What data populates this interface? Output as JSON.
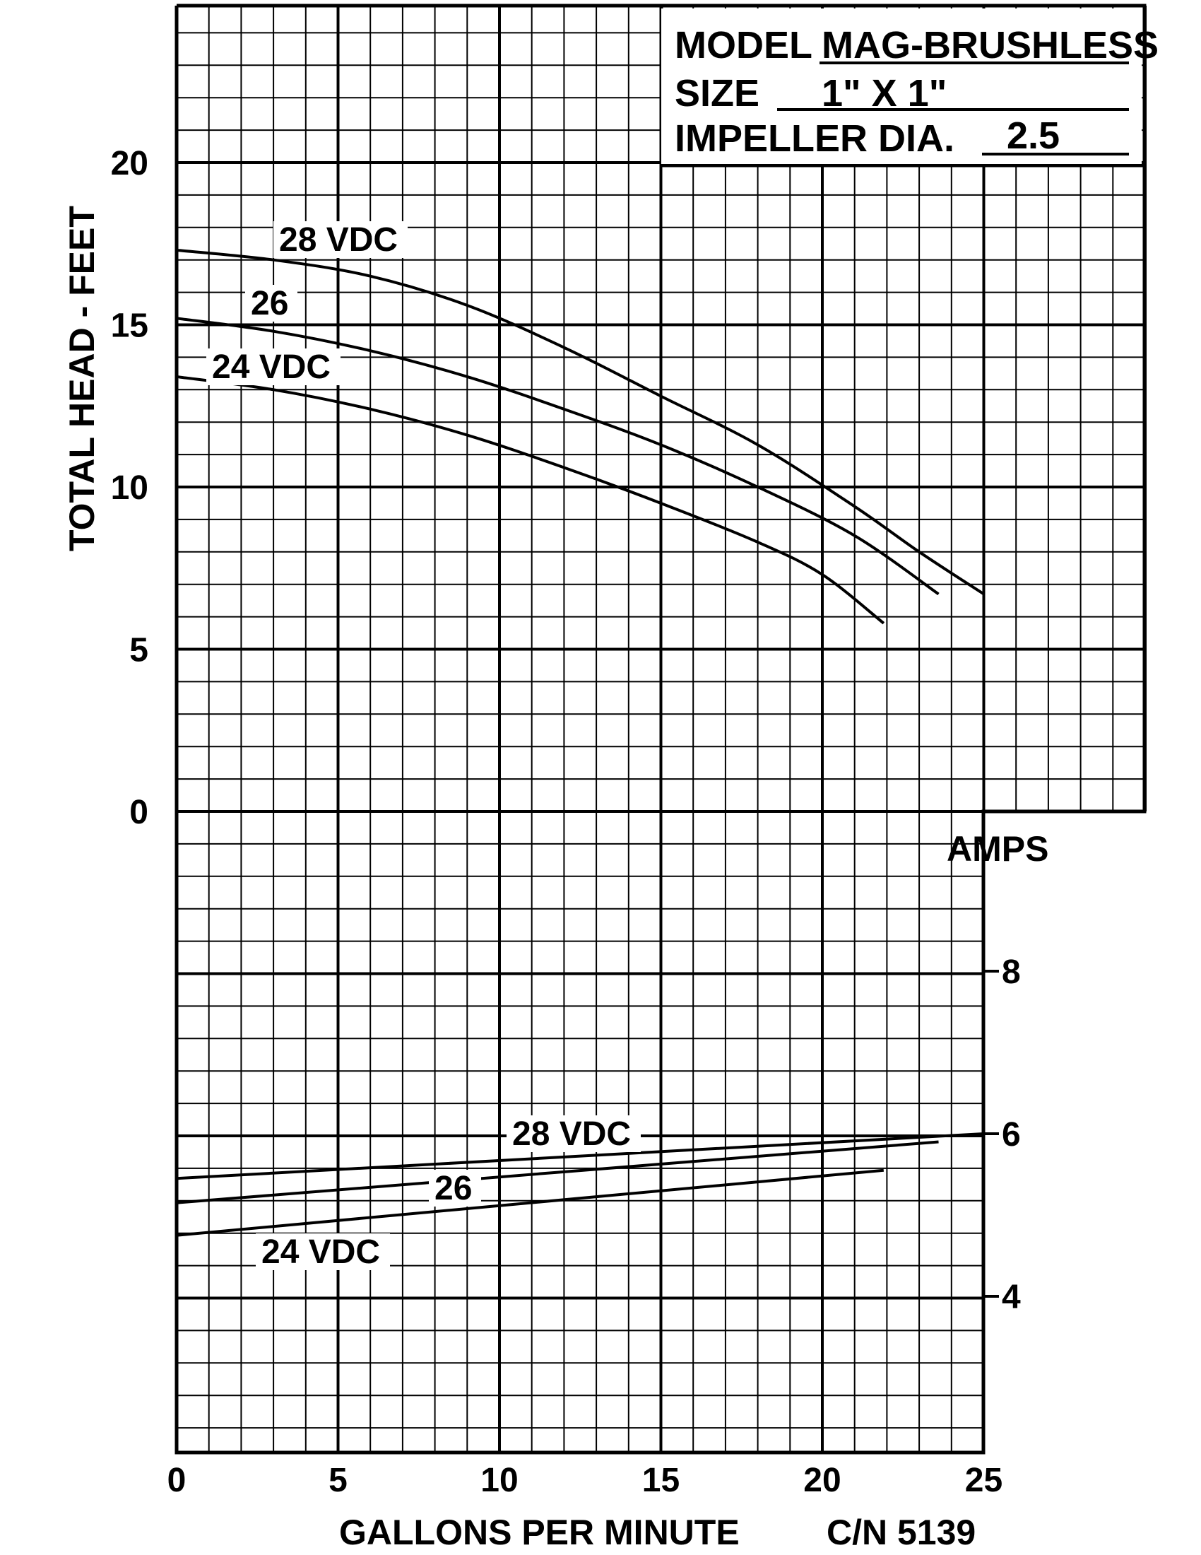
{
  "info_box": {
    "model_label": "MODEL",
    "model_value": "MAG-BRUSHLESS",
    "size_label": "SIZE",
    "size_value": "1\" X 1\"",
    "impeller_label": "IMPELLER DIA.",
    "impeller_value": "2.5"
  },
  "chart_data": {
    "type": "line",
    "xlabel": "GALLONS PER MINUTE",
    "catalog_number": "C/N 5139",
    "colors": {
      "line": "#000000",
      "grid": "#000000",
      "background": "#ffffff"
    },
    "grid": true,
    "x_axis": {
      "range": [
        0,
        30
      ],
      "ticks": [
        0,
        5,
        10,
        15,
        20,
        25
      ]
    },
    "head_axis": {
      "label": "TOTAL HEAD - FEET",
      "range": [
        0,
        25
      ],
      "ticks": [
        0,
        5,
        10,
        15,
        20
      ]
    },
    "amps_axis": {
      "label": "AMPS",
      "range": [
        2,
        10
      ],
      "ticks": [
        4,
        6,
        8
      ]
    },
    "head_curves": [
      {
        "name": "28 VDC",
        "label": "28 VDC",
        "points": [
          [
            0,
            17.3
          ],
          [
            3,
            17.0
          ],
          [
            6,
            16.5
          ],
          [
            9,
            15.6
          ],
          [
            12,
            14.3
          ],
          [
            15,
            12.8
          ],
          [
            18,
            11.3
          ],
          [
            21,
            9.4
          ],
          [
            23,
            8.0
          ],
          [
            25,
            6.7
          ]
        ]
      },
      {
        "name": "26 VDC",
        "label": "26",
        "points": [
          [
            0,
            15.2
          ],
          [
            3,
            14.8
          ],
          [
            6,
            14.2
          ],
          [
            9,
            13.4
          ],
          [
            12,
            12.4
          ],
          [
            15,
            11.3
          ],
          [
            18,
            10.0
          ],
          [
            21,
            8.5
          ],
          [
            23.6,
            6.7
          ]
        ]
      },
      {
        "name": "24 VDC",
        "label": "24 VDC",
        "points": [
          [
            0,
            13.4
          ],
          [
            3,
            13.0
          ],
          [
            6,
            12.4
          ],
          [
            9,
            11.6
          ],
          [
            12,
            10.6
          ],
          [
            15,
            9.5
          ],
          [
            18,
            8.3
          ],
          [
            20,
            7.3
          ],
          [
            21.9,
            5.8
          ]
        ]
      }
    ],
    "amps_curves": [
      {
        "name": "28 VDC",
        "label": "28 VDC",
        "points": [
          [
            0,
            5.45
          ],
          [
            25,
            6.0
          ]
        ]
      },
      {
        "name": "26 VDC",
        "label": "26",
        "points": [
          [
            0,
            5.15
          ],
          [
            23.6,
            5.9
          ]
        ]
      },
      {
        "name": "24 VDC",
        "label": "24 VDC",
        "points": [
          [
            0,
            4.75
          ],
          [
            21.9,
            5.55
          ]
        ]
      }
    ]
  }
}
